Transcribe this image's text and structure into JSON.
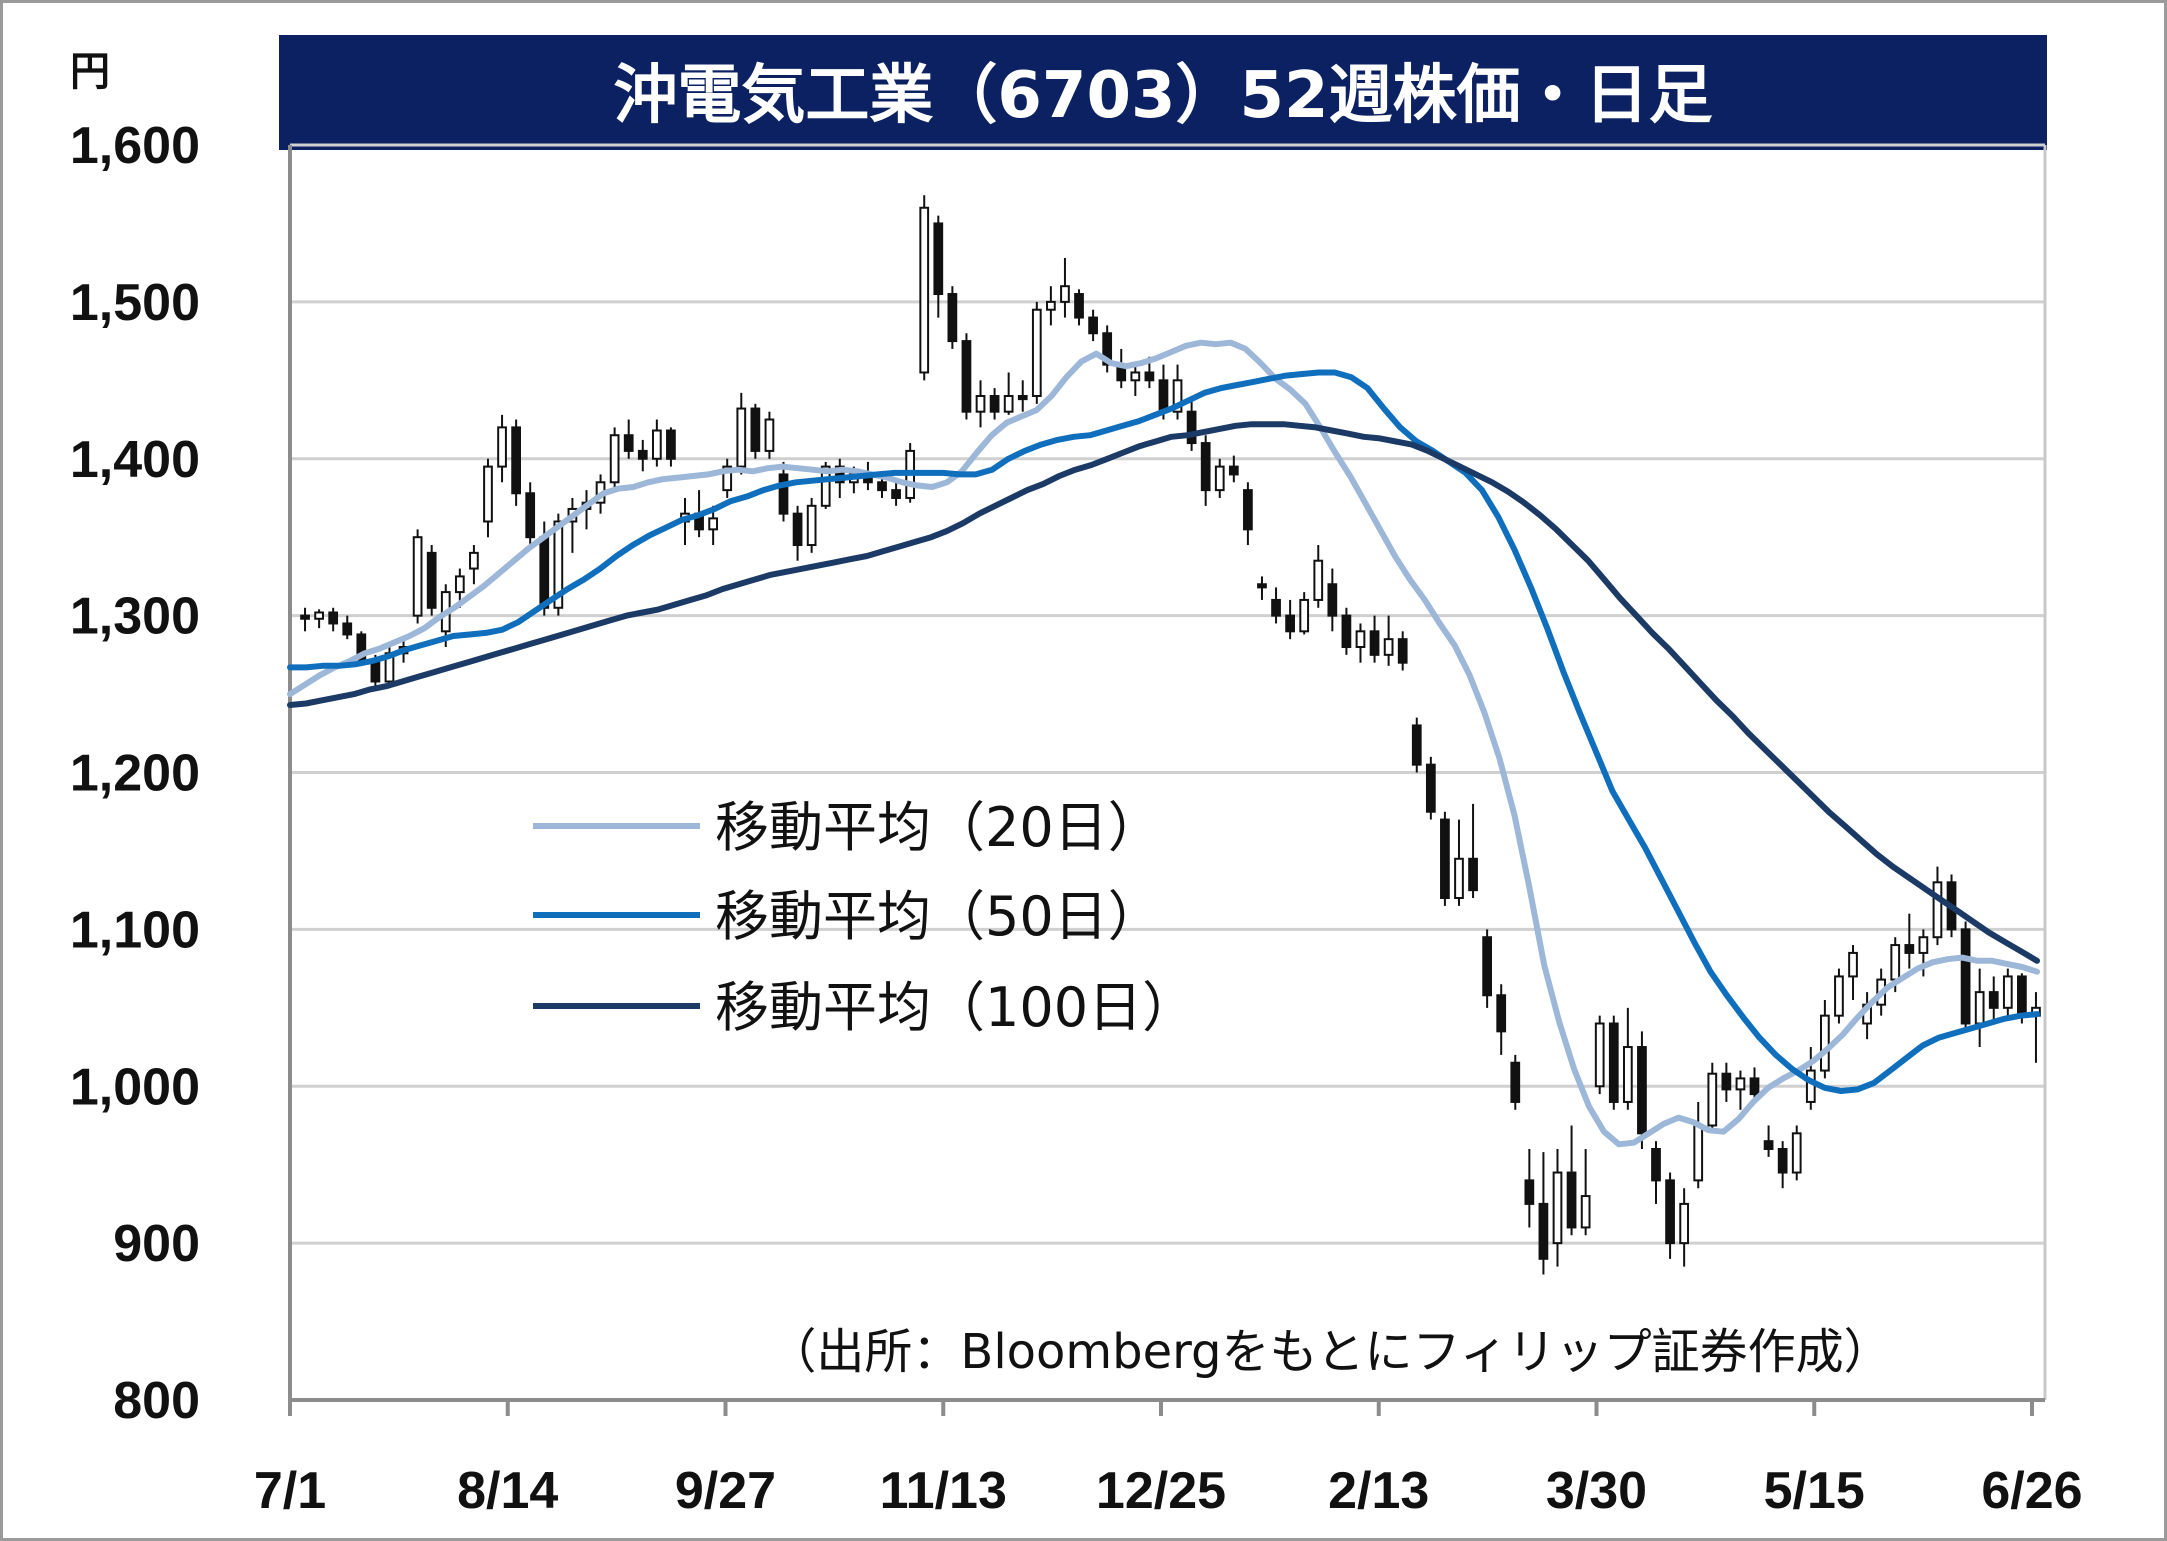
{
  "chart_data": {
    "type": "candlestick",
    "title": "沖電気工業（6703）52週株価・日足",
    "y_unit": "円",
    "source": "（出所：Bloombergをもとにフィリップ証券作成）",
    "ylim": [
      800,
      1600
    ],
    "y_ticks": [
      1600,
      1500,
      1400,
      1300,
      1200,
      1100,
      1000,
      900,
      800
    ],
    "y_tick_labels": [
      "1,600",
      "1,500",
      "1,400",
      "1,300",
      "1,200",
      "1,100",
      "1,000",
      "900",
      "800"
    ],
    "x_tick_labels": [
      "7/1",
      "8/14",
      "9/27",
      "11/13",
      "12/25",
      "2/13",
      "3/30",
      "5/15",
      "6/26"
    ],
    "grid": true,
    "legend_position": "center-left",
    "series": [
      {
        "name": "移動平均（20日）",
        "color": "#9db7d9",
        "values": [
          1250,
          1256,
          1262,
          1267,
          1271,
          1276,
          1279,
          1283,
          1287,
          1292,
          1299,
          1305,
          1312,
          1319,
          1327,
          1335,
          1343,
          1350,
          1357,
          1364,
          1371,
          1378,
          1381,
          1382,
          1385,
          1387,
          1388,
          1389,
          1390,
          1392,
          1393,
          1392,
          1394,
          1395,
          1394,
          1393,
          1392,
          1393,
          1392,
          1390,
          1388,
          1385,
          1383,
          1382,
          1385,
          1392,
          1404,
          1415,
          1423,
          1427,
          1431,
          1440,
          1452,
          1462,
          1467,
          1461,
          1459,
          1461,
          1464,
          1468,
          1472,
          1474,
          1473,
          1474,
          1470,
          1461,
          1451,
          1444,
          1435,
          1420,
          1404,
          1389,
          1372,
          1355,
          1338,
          1323,
          1310,
          1295,
          1281,
          1262,
          1238,
          1209,
          1173,
          1127,
          1077,
          1041,
          1011,
          987,
          971,
          963,
          964,
          970,
          976,
          980,
          977,
          972,
          971,
          979,
          990,
          999,
          1005,
          1010,
          1016,
          1024,
          1033,
          1044,
          1054,
          1063,
          1069,
          1075,
          1079,
          1081,
          1082,
          1080,
          1080,
          1078,
          1076,
          1073
        ]
      },
      {
        "name": "移動平均（50日）",
        "color": "#0f6fbd",
        "values": [
          1267,
          1267,
          1268,
          1268,
          1269,
          1271,
          1274,
          1278,
          1281,
          1284,
          1287,
          1288,
          1289,
          1291,
          1296,
          1303,
          1310,
          1317,
          1323,
          1330,
          1338,
          1345,
          1351,
          1356,
          1361,
          1364,
          1368,
          1373,
          1376,
          1380,
          1383,
          1385,
          1386,
          1387,
          1388,
          1389,
          1390,
          1391,
          1391,
          1391,
          1391,
          1390,
          1390,
          1393,
          1400,
          1405,
          1409,
          1412,
          1414,
          1415,
          1418,
          1421,
          1424,
          1428,
          1432,
          1437,
          1442,
          1445,
          1447,
          1449,
          1451,
          1453,
          1454,
          1455,
          1455,
          1452,
          1445,
          1432,
          1420,
          1411,
          1405,
          1398,
          1391,
          1380,
          1363,
          1342,
          1318,
          1292,
          1264,
          1238,
          1213,
          1188,
          1170,
          1152,
          1132,
          1112,
          1092,
          1073,
          1058,
          1044,
          1031,
          1020,
          1011,
          1004,
          999,
          997,
          998,
          1002,
          1010,
          1018,
          1026,
          1031,
          1034,
          1037,
          1040,
          1043,
          1045,
          1046
        ]
      },
      {
        "name": "移動平均（100日）",
        "color": "#1b3a66",
        "values": [
          1243,
          1244,
          1246,
          1248,
          1250,
          1253,
          1255,
          1258,
          1261,
          1264,
          1267,
          1270,
          1273,
          1276,
          1279,
          1282,
          1285,
          1288,
          1291,
          1294,
          1297,
          1300,
          1302,
          1304,
          1307,
          1310,
          1313,
          1317,
          1320,
          1323,
          1326,
          1328,
          1330,
          1332,
          1334,
          1336,
          1338,
          1341,
          1344,
          1347,
          1350,
          1354,
          1359,
          1365,
          1370,
          1375,
          1380,
          1384,
          1389,
          1393,
          1396,
          1400,
          1404,
          1408,
          1411,
          1414,
          1415,
          1417,
          1419,
          1421,
          1422,
          1422,
          1422,
          1421,
          1420,
          1418,
          1416,
          1414,
          1413,
          1411,
          1409,
          1405,
          1400,
          1395,
          1390,
          1385,
          1379,
          1372,
          1364,
          1355,
          1345,
          1335,
          1323,
          1311,
          1300,
          1289,
          1279,
          1268,
          1257,
          1246,
          1236,
          1225,
          1215,
          1205,
          1195,
          1185,
          1175,
          1166,
          1157,
          1148,
          1140,
          1133,
          1126,
          1119,
          1112,
          1105,
          1098,
          1092,
          1086,
          1080
        ]
      }
    ],
    "candles": [
      {
        "o": 1300,
        "h": 1305,
        "l": 1290,
        "c": 1298
      },
      {
        "o": 1298,
        "h": 1304,
        "l": 1292,
        "c": 1302
      },
      {
        "o": 1302,
        "h": 1305,
        "l": 1290,
        "c": 1295
      },
      {
        "o": 1295,
        "h": 1300,
        "l": 1285,
        "c": 1288
      },
      {
        "o": 1288,
        "h": 1290,
        "l": 1268,
        "c": 1272
      },
      {
        "o": 1272,
        "h": 1275,
        "l": 1255,
        "c": 1258
      },
      {
        "o": 1258,
        "h": 1280,
        "l": 1256,
        "c": 1276
      },
      {
        "o": 1276,
        "h": 1285,
        "l": 1270,
        "c": 1280
      },
      {
        "o": 1300,
        "h": 1355,
        "l": 1295,
        "c": 1350
      },
      {
        "o": 1340,
        "h": 1345,
        "l": 1300,
        "c": 1305
      },
      {
        "o": 1290,
        "h": 1320,
        "l": 1280,
        "c": 1315
      },
      {
        "o": 1315,
        "h": 1330,
        "l": 1305,
        "c": 1325
      },
      {
        "o": 1330,
        "h": 1345,
        "l": 1320,
        "c": 1340
      },
      {
        "o": 1360,
        "h": 1400,
        "l": 1350,
        "c": 1395
      },
      {
        "o": 1395,
        "h": 1428,
        "l": 1385,
        "c": 1420
      },
      {
        "o": 1420,
        "h": 1425,
        "l": 1370,
        "c": 1378
      },
      {
        "o": 1378,
        "h": 1385,
        "l": 1345,
        "c": 1350
      },
      {
        "o": 1350,
        "h": 1360,
        "l": 1300,
        "c": 1305
      },
      {
        "o": 1305,
        "h": 1365,
        "l": 1300,
        "c": 1360
      },
      {
        "o": 1360,
        "h": 1375,
        "l": 1340,
        "c": 1368
      },
      {
        "o": 1368,
        "h": 1380,
        "l": 1355,
        "c": 1372
      },
      {
        "o": 1372,
        "h": 1390,
        "l": 1365,
        "c": 1385
      },
      {
        "o": 1385,
        "h": 1420,
        "l": 1380,
        "c": 1415
      },
      {
        "o": 1415,
        "h": 1425,
        "l": 1400,
        "c": 1405
      },
      {
        "o": 1405,
        "h": 1412,
        "l": 1392,
        "c": 1400
      },
      {
        "o": 1400,
        "h": 1425,
        "l": 1395,
        "c": 1418
      },
      {
        "o": 1418,
        "h": 1420,
        "l": 1395,
        "c": 1400
      },
      {
        "o": 1360,
        "h": 1375,
        "l": 1345,
        "c": 1365
      },
      {
        "o": 1365,
        "h": 1380,
        "l": 1350,
        "c": 1355
      },
      {
        "o": 1355,
        "h": 1370,
        "l": 1345,
        "c": 1362
      },
      {
        "o": 1380,
        "h": 1400,
        "l": 1375,
        "c": 1395
      },
      {
        "o": 1395,
        "h": 1442,
        "l": 1390,
        "c": 1432
      },
      {
        "o": 1432,
        "h": 1435,
        "l": 1400,
        "c": 1405
      },
      {
        "o": 1405,
        "h": 1430,
        "l": 1400,
        "c": 1425
      },
      {
        "o": 1390,
        "h": 1398,
        "l": 1360,
        "c": 1365
      },
      {
        "o": 1365,
        "h": 1370,
        "l": 1335,
        "c": 1345
      },
      {
        "o": 1345,
        "h": 1375,
        "l": 1340,
        "c": 1370
      },
      {
        "o": 1370,
        "h": 1398,
        "l": 1368,
        "c": 1395
      },
      {
        "o": 1395,
        "h": 1400,
        "l": 1375,
        "c": 1385
      },
      {
        "o": 1385,
        "h": 1395,
        "l": 1378,
        "c": 1390
      },
      {
        "o": 1390,
        "h": 1398,
        "l": 1380,
        "c": 1385
      },
      {
        "o": 1385,
        "h": 1392,
        "l": 1375,
        "c": 1380
      },
      {
        "o": 1380,
        "h": 1388,
        "l": 1370,
        "c": 1375
      },
      {
        "o": 1375,
        "h": 1410,
        "l": 1372,
        "c": 1405
      },
      {
        "o": 1455,
        "h": 1568,
        "l": 1450,
        "c": 1560
      },
      {
        "o": 1550,
        "h": 1555,
        "l": 1490,
        "c": 1505
      },
      {
        "o": 1505,
        "h": 1510,
        "l": 1470,
        "c": 1475
      },
      {
        "o": 1475,
        "h": 1480,
        "l": 1425,
        "c": 1430
      },
      {
        "o": 1430,
        "h": 1450,
        "l": 1420,
        "c": 1440
      },
      {
        "o": 1440,
        "h": 1445,
        "l": 1425,
        "c": 1430
      },
      {
        "o": 1430,
        "h": 1455,
        "l": 1428,
        "c": 1440
      },
      {
        "o": 1440,
        "h": 1450,
        "l": 1430,
        "c": 1438
      },
      {
        "o": 1440,
        "h": 1500,
        "l": 1435,
        "c": 1495
      },
      {
        "o": 1495,
        "h": 1510,
        "l": 1485,
        "c": 1500
      },
      {
        "o": 1500,
        "h": 1528,
        "l": 1490,
        "c": 1510
      },
      {
        "o": 1505,
        "h": 1508,
        "l": 1485,
        "c": 1490
      },
      {
        "o": 1490,
        "h": 1495,
        "l": 1475,
        "c": 1480
      },
      {
        "o": 1480,
        "h": 1485,
        "l": 1455,
        "c": 1460
      },
      {
        "o": 1460,
        "h": 1470,
        "l": 1445,
        "c": 1450
      },
      {
        "o": 1450,
        "h": 1460,
        "l": 1440,
        "c": 1455
      },
      {
        "o": 1455,
        "h": 1465,
        "l": 1445,
        "c": 1450
      },
      {
        "o": 1450,
        "h": 1460,
        "l": 1425,
        "c": 1430
      },
      {
        "o": 1430,
        "h": 1460,
        "l": 1425,
        "c": 1450
      },
      {
        "o": 1430,
        "h": 1438,
        "l": 1405,
        "c": 1410
      },
      {
        "o": 1410,
        "h": 1415,
        "l": 1370,
        "c": 1380
      },
      {
        "o": 1380,
        "h": 1400,
        "l": 1375,
        "c": 1395
      },
      {
        "o": 1395,
        "h": 1402,
        "l": 1385,
        "c": 1390
      },
      {
        "o": 1380,
        "h": 1385,
        "l": 1345,
        "c": 1355
      },
      {
        "o": 1320,
        "h": 1325,
        "l": 1310,
        "c": 1318
      },
      {
        "o": 1310,
        "h": 1318,
        "l": 1295,
        "c": 1300
      },
      {
        "o": 1300,
        "h": 1310,
        "l": 1285,
        "c": 1290
      },
      {
        "o": 1290,
        "h": 1315,
        "l": 1288,
        "c": 1310
      },
      {
        "o": 1310,
        "h": 1345,
        "l": 1305,
        "c": 1335
      },
      {
        "o": 1320,
        "h": 1330,
        "l": 1290,
        "c": 1300
      },
      {
        "o": 1300,
        "h": 1305,
        "l": 1275,
        "c": 1280
      },
      {
        "o": 1280,
        "h": 1295,
        "l": 1270,
        "c": 1290
      },
      {
        "o": 1290,
        "h": 1300,
        "l": 1270,
        "c": 1275
      },
      {
        "o": 1275,
        "h": 1300,
        "l": 1268,
        "c": 1285
      },
      {
        "o": 1285,
        "h": 1290,
        "l": 1265,
        "c": 1270
      },
      {
        "o": 1230,
        "h": 1235,
        "l": 1200,
        "c": 1205
      },
      {
        "o": 1205,
        "h": 1210,
        "l": 1170,
        "c": 1175
      },
      {
        "o": 1170,
        "h": 1175,
        "l": 1115,
        "c": 1120
      },
      {
        "o": 1120,
        "h": 1170,
        "l": 1115,
        "c": 1145
      },
      {
        "o": 1145,
        "h": 1180,
        "l": 1120,
        "c": 1125
      },
      {
        "o": 1095,
        "h": 1100,
        "l": 1050,
        "c": 1058
      },
      {
        "o": 1058,
        "h": 1065,
        "l": 1020,
        "c": 1035
      },
      {
        "o": 1015,
        "h": 1020,
        "l": 985,
        "c": 990
      },
      {
        "o": 940,
        "h": 960,
        "l": 910,
        "c": 925
      },
      {
        "o": 925,
        "h": 958,
        "l": 880,
        "c": 890
      },
      {
        "o": 900,
        "h": 960,
        "l": 885,
        "c": 945
      },
      {
        "o": 945,
        "h": 975,
        "l": 905,
        "c": 910
      },
      {
        "o": 910,
        "h": 960,
        "l": 905,
        "c": 930
      },
      {
        "o": 1000,
        "h": 1045,
        "l": 995,
        "c": 1040
      },
      {
        "o": 1040,
        "h": 1045,
        "l": 985,
        "c": 990
      },
      {
        "o": 990,
        "h": 1050,
        "l": 985,
        "c": 1025
      },
      {
        "o": 1025,
        "h": 1035,
        "l": 960,
        "c": 970
      },
      {
        "o": 960,
        "h": 965,
        "l": 925,
        "c": 940
      },
      {
        "o": 940,
        "h": 945,
        "l": 890,
        "c": 900
      },
      {
        "o": 900,
        "h": 935,
        "l": 885,
        "c": 925
      },
      {
        "o": 940,
        "h": 990,
        "l": 935,
        "c": 975
      },
      {
        "o": 975,
        "h": 1015,
        "l": 970,
        "c": 1008
      },
      {
        "o": 1008,
        "h": 1015,
        "l": 990,
        "c": 998
      },
      {
        "o": 998,
        "h": 1010,
        "l": 985,
        "c": 1005
      },
      {
        "o": 1005,
        "h": 1012,
        "l": 990,
        "c": 995
      },
      {
        "o": 965,
        "h": 975,
        "l": 955,
        "c": 960
      },
      {
        "o": 960,
        "h": 965,
        "l": 935,
        "c": 945
      },
      {
        "o": 945,
        "h": 975,
        "l": 940,
        "c": 970
      },
      {
        "o": 990,
        "h": 1025,
        "l": 985,
        "c": 1010
      },
      {
        "o": 1010,
        "h": 1055,
        "l": 1005,
        "c": 1045
      },
      {
        "o": 1045,
        "h": 1075,
        "l": 1040,
        "c": 1070
      },
      {
        "o": 1070,
        "h": 1090,
        "l": 1055,
        "c": 1085
      },
      {
        "o": 1040,
        "h": 1060,
        "l": 1030,
        "c": 1052
      },
      {
        "o": 1052,
        "h": 1075,
        "l": 1045,
        "c": 1068
      },
      {
        "o": 1068,
        "h": 1095,
        "l": 1060,
        "c": 1090
      },
      {
        "o": 1090,
        "h": 1110,
        "l": 1075,
        "c": 1085
      },
      {
        "o": 1085,
        "h": 1100,
        "l": 1070,
        "c": 1095
      },
      {
        "o": 1095,
        "h": 1140,
        "l": 1090,
        "c": 1130
      },
      {
        "o": 1130,
        "h": 1135,
        "l": 1095,
        "c": 1100
      },
      {
        "o": 1100,
        "h": 1105,
        "l": 1035,
        "c": 1040
      },
      {
        "o": 1040,
        "h": 1075,
        "l": 1025,
        "c": 1060
      },
      {
        "o": 1060,
        "h": 1070,
        "l": 1040,
        "c": 1050
      },
      {
        "o": 1050,
        "h": 1075,
        "l": 1045,
        "c": 1070
      },
      {
        "o": 1070,
        "h": 1072,
        "l": 1040,
        "c": 1045
      },
      {
        "o": 1045,
        "h": 1060,
        "l": 1015,
        "c": 1050
      }
    ]
  }
}
